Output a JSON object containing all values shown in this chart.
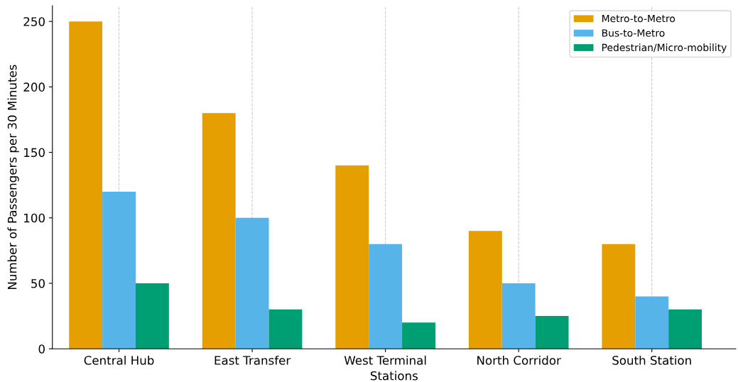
{
  "chart_data": {
    "type": "bar",
    "xlabel": "Stations",
    "ylabel": "Number of Passengers per 30 Minutes",
    "categories": [
      "Central Hub",
      "East Transfer",
      "West Terminal",
      "North Corridor",
      "South Station"
    ],
    "series": [
      {
        "name": "Metro-to-Metro",
        "color": "#e69f00",
        "values": [
          250,
          180,
          140,
          90,
          80
        ]
      },
      {
        "name": "Bus-to-Metro",
        "color": "#56b4e9",
        "values": [
          120,
          100,
          80,
          50,
          40
        ]
      },
      {
        "name": "Pedestrian/Micro-mobility",
        "color": "#009e73",
        "values": [
          50,
          30,
          20,
          25,
          30
        ]
      }
    ],
    "ylim": [
      0,
      262
    ],
    "yticks": [
      0,
      50,
      100,
      150,
      200,
      250
    ],
    "grid": "x",
    "legend": "top right"
  }
}
